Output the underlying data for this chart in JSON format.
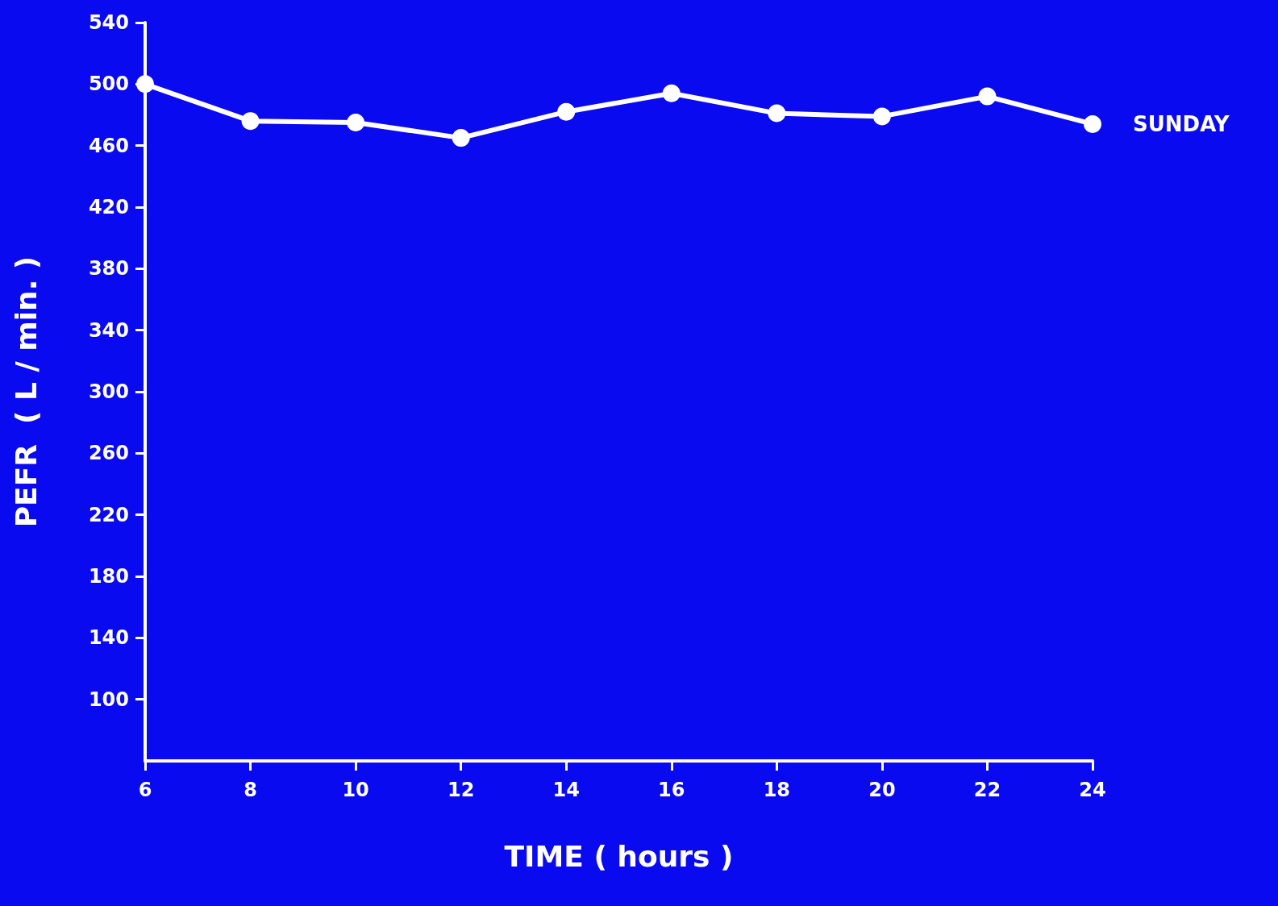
{
  "chart_data": {
    "type": "line",
    "xlabel": "TIME ( hours )",
    "ylabel": "PEFR  ( L / min. )",
    "x": [
      6,
      8,
      10,
      12,
      14,
      16,
      18,
      20,
      22,
      24
    ],
    "series": [
      {
        "name": "SUNDAY",
        "color": "#ffffff",
        "values": [
          500,
          476,
          475,
          465,
          482,
          494,
          481,
          479,
          492,
          474
        ]
      }
    ],
    "xlim": [
      6,
      24
    ],
    "xticks": [
      6,
      8,
      10,
      12,
      14,
      16,
      18,
      20,
      22,
      24
    ],
    "ylim": [
      60,
      540
    ],
    "yticks": [
      100,
      140,
      180,
      220,
      260,
      300,
      340,
      380,
      420,
      460,
      500,
      540
    ],
    "marker": "circle",
    "line_style": "solid",
    "grid": false,
    "legend": false
  }
}
